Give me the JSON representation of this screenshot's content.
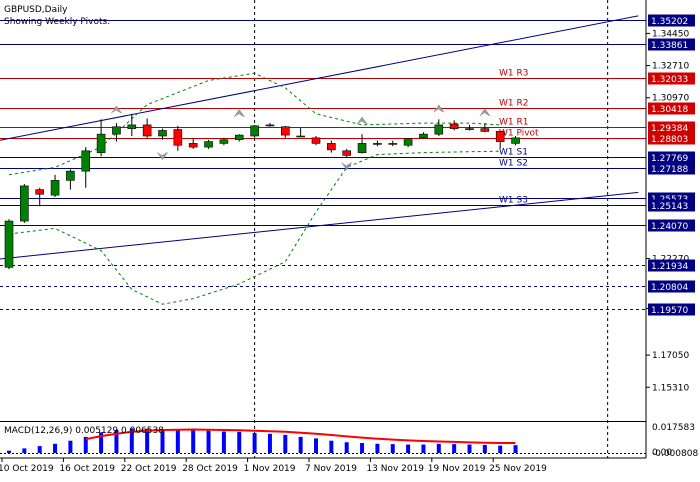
{
  "header": {
    "symbol": "GBPUSD,Daily",
    "subtitle": "Showing Weekly Pivots."
  },
  "colors": {
    "background": "#ffffff",
    "bull_candle": "#008000",
    "bear_candle": "#ff0000",
    "pivot_blue": "#000080",
    "pivot_red": "#c00000",
    "channel_line": "#000080",
    "envelope": "#008000",
    "macd_hist": "#0000ff",
    "macd_signal": "#ff0000",
    "price_tag_blue": "#000080",
    "price_tag_red": "#d00000"
  },
  "price_axis": {
    "scale": [
      {
        "price": 1.3445,
        "label": "1.34450"
      },
      {
        "price": 1.3271,
        "label": "1.32710"
      },
      {
        "price": 1.3097,
        "label": "1.30970"
      },
      {
        "price": 1.2227,
        "label": "1.22270"
      },
      {
        "price": 1.1957,
        "label": "1.19570"
      },
      {
        "price": 1.1705,
        "label": "1.17050"
      },
      {
        "price": 1.1531,
        "label": "1.15310"
      }
    ],
    "tags": [
      {
        "price": 1.35202,
        "label": "1.35202",
        "color": "blue"
      },
      {
        "price": 1.33861,
        "label": "1.33861",
        "color": "blue"
      },
      {
        "price": 1.32033,
        "label": "1.32033",
        "color": "red"
      },
      {
        "price": 1.30418,
        "label": "1.30418",
        "color": "red"
      },
      {
        "price": 1.29384,
        "label": "1.29384",
        "color": "red"
      },
      {
        "price": 1.28803,
        "label": "1.28803",
        "color": "red"
      },
      {
        "price": 1.27769,
        "label": "1.27769",
        "color": "blue"
      },
      {
        "price": 1.27188,
        "label": "1.27188",
        "color": "blue"
      },
      {
        "price": 1.25573,
        "label": "1.25573",
        "color": "blue"
      },
      {
        "price": 1.25143,
        "label": "1.25143",
        "color": "blue"
      },
      {
        "price": 1.2407,
        "label": "1.24070",
        "color": "blue"
      },
      {
        "price": 1.21934,
        "label": "1.21934",
        "color": "blue"
      },
      {
        "price": 1.20804,
        "label": "1.20804",
        "color": "blue"
      },
      {
        "price": 1.1957,
        "label": "1.19570",
        "color": "blue"
      }
    ]
  },
  "pivots": [
    {
      "price": 1.35202,
      "label": "",
      "style": "solid",
      "color": "blue"
    },
    {
      "price": 1.33861,
      "label": "",
      "style": "solid",
      "color": "blue"
    },
    {
      "price": 1.32033,
      "label": "W1 R3",
      "style": "solid",
      "color": "red"
    },
    {
      "price": 1.30418,
      "label": "W1 R2",
      "style": "solid",
      "color": "red"
    },
    {
      "price": 1.29384,
      "label": "W1 R1",
      "style": "solid",
      "color": "red"
    },
    {
      "price": 1.28803,
      "label": "W1 Pivot",
      "style": "solid",
      "color": "red"
    },
    {
      "price": 1.27769,
      "label": "W1 S1",
      "style": "solid",
      "color": "blue"
    },
    {
      "price": 1.27188,
      "label": "W1 S2",
      "style": "solid",
      "color": "blue"
    },
    {
      "price": 1.25573,
      "label": "",
      "style": "solid",
      "color": "blue"
    },
    {
      "price": 1.25143,
      "label": "W1 S3",
      "style": "solid",
      "color": "blue"
    },
    {
      "price": 1.2407,
      "label": "",
      "style": "solid",
      "color": "blue"
    },
    {
      "price": 1.21934,
      "label": "",
      "style": "dashed",
      "color": "blue"
    },
    {
      "price": 1.20804,
      "label": "",
      "style": "dashed",
      "color": "blue"
    },
    {
      "price": 1.1957,
      "label": "",
      "style": "dashed",
      "color": "blue"
    }
  ],
  "channel_lines": [
    {
      "from": [
        0,
        1.2867
      ],
      "to": [
        41,
        1.354
      ]
    },
    {
      "from": [
        0,
        1.2225
      ],
      "to": [
        41,
        1.2585
      ]
    }
  ],
  "candles": [
    {
      "o": 1.218,
      "h": 1.244,
      "l": 1.217,
      "c": 1.243
    },
    {
      "o": 1.243,
      "h": 1.263,
      "l": 1.242,
      "c": 1.262
    },
    {
      "o": 1.26,
      "h": 1.261,
      "l": 1.251,
      "c": 1.2575
    },
    {
      "o": 1.257,
      "h": 1.268,
      "l": 1.256,
      "c": 1.265
    },
    {
      "o": 1.265,
      "h": 1.271,
      "l": 1.26,
      "c": 1.27
    },
    {
      "o": 1.27,
      "h": 1.283,
      "l": 1.261,
      "c": 1.281
    },
    {
      "o": 1.28,
      "h": 1.298,
      "l": 1.278,
      "c": 1.29
    },
    {
      "o": 1.29,
      "h": 1.296,
      "l": 1.286,
      "c": 1.294
    },
    {
      "o": 1.293,
      "h": 1.301,
      "l": 1.289,
      "c": 1.295
    },
    {
      "o": 1.295,
      "h": 1.2985,
      "l": 1.288,
      "c": 1.289
    },
    {
      "o": 1.289,
      "h": 1.293,
      "l": 1.287,
      "c": 1.292
    },
    {
      "o": 1.2925,
      "h": 1.2945,
      "l": 1.281,
      "c": 1.284
    },
    {
      "o": 1.285,
      "h": 1.288,
      "l": 1.282,
      "c": 1.283
    },
    {
      "o": 1.283,
      "h": 1.287,
      "l": 1.282,
      "c": 1.286
    },
    {
      "o": 1.285,
      "h": 1.288,
      "l": 1.284,
      "c": 1.287
    },
    {
      "o": 1.287,
      "h": 1.29,
      "l": 1.286,
      "c": 1.2895
    },
    {
      "o": 1.289,
      "h": 1.295,
      "l": 1.288,
      "c": 1.2945
    },
    {
      "o": 1.295,
      "h": 1.296,
      "l": 1.294,
      "c": 1.2948
    },
    {
      "o": 1.294,
      "h": 1.2945,
      "l": 1.288,
      "c": 1.2895
    },
    {
      "o": 1.289,
      "h": 1.2935,
      "l": 1.2885,
      "c": 1.289
    },
    {
      "o": 1.288,
      "h": 1.289,
      "l": 1.284,
      "c": 1.285
    },
    {
      "o": 1.285,
      "h": 1.2865,
      "l": 1.28,
      "c": 1.2815
    },
    {
      "o": 1.281,
      "h": 1.282,
      "l": 1.2775,
      "c": 1.2785
    },
    {
      "o": 1.28,
      "h": 1.29,
      "l": 1.2795,
      "c": 1.285
    },
    {
      "o": 1.2845,
      "h": 1.2865,
      "l": 1.2835,
      "c": 1.285
    },
    {
      "o": 1.285,
      "h": 1.2865,
      "l": 1.2835,
      "c": 1.2845
    },
    {
      "o": 1.284,
      "h": 1.288,
      "l": 1.283,
      "c": 1.2875
    },
    {
      "o": 1.288,
      "h": 1.291,
      "l": 1.2875,
      "c": 1.29
    },
    {
      "o": 1.29,
      "h": 1.298,
      "l": 1.289,
      "c": 1.295
    },
    {
      "o": 1.2955,
      "h": 1.2975,
      "l": 1.292,
      "c": 1.293
    },
    {
      "o": 1.293,
      "h": 1.295,
      "l": 1.292,
      "c": 1.2928
    },
    {
      "o": 1.293,
      "h": 1.296,
      "l": 1.291,
      "c": 1.2915
    },
    {
      "o": 1.2915,
      "h": 1.292,
      "l": 1.2825,
      "c": 1.286
    },
    {
      "o": 1.285,
      "h": 1.289,
      "l": 1.284,
      "c": 1.288
    }
  ],
  "fractals": [
    {
      "bar": 7,
      "type": "up",
      "price": 1.303
    },
    {
      "bar": 10,
      "type": "down",
      "price": 1.2785
    },
    {
      "bar": 15,
      "type": "up",
      "price": 1.301
    },
    {
      "bar": 23,
      "type": "up",
      "price": 1.297
    },
    {
      "bar": 22,
      "type": "down",
      "price": 1.273
    },
    {
      "bar": 28,
      "type": "up",
      "price": 1.3035
    },
    {
      "bar": 31,
      "type": "up",
      "price": 1.3015
    }
  ],
  "envelope_upper": [
    [
      0,
      1.268
    ],
    [
      3,
      1.272
    ],
    [
      6,
      1.283
    ],
    [
      9,
      1.306
    ],
    [
      13,
      1.319
    ],
    [
      16,
      1.323
    ],
    [
      18,
      1.315
    ],
    [
      20,
      1.301
    ],
    [
      23,
      1.295
    ],
    [
      27,
      1.296
    ],
    [
      30,
      1.296
    ],
    [
      32,
      1.295
    ]
  ],
  "envelope_lower": [
    [
      0,
      1.236
    ],
    [
      3,
      1.239
    ],
    [
      6,
      1.227
    ],
    [
      8,
      1.206
    ],
    [
      10,
      1.198
    ],
    [
      12,
      1.201
    ],
    [
      15,
      1.209
    ],
    [
      18,
      1.221
    ],
    [
      20,
      1.248
    ],
    [
      22,
      1.272
    ],
    [
      24,
      1.279
    ],
    [
      27,
      1.28
    ],
    [
      30,
      1.2805
    ],
    [
      32,
      1.2808
    ]
  ],
  "time_axis": {
    "labels": [
      {
        "bar": 0,
        "label": "10 Oct 2019"
      },
      {
        "bar": 4,
        "label": "16 Oct 2019"
      },
      {
        "bar": 8,
        "label": "22 Oct 2019"
      },
      {
        "bar": 12,
        "label": "28 Oct 2019"
      },
      {
        "bar": 16,
        "label": "1 Nov 2019"
      },
      {
        "bar": 20,
        "label": "7 Nov 2019"
      },
      {
        "bar": 24,
        "label": "13 Nov 2019"
      },
      {
        "bar": 28,
        "label": "19 Nov 2019"
      },
      {
        "bar": 32,
        "label": "25 Nov 2019"
      }
    ]
  },
  "vertical_markers": [
    16,
    39
  ],
  "macd": {
    "label": "MACD(12,26,9) 0.005129 0.006538",
    "scale_top": "0.017583",
    "scale_zero": "0.00",
    "scale_bottom": "-0.000808",
    "histogram": [
      0.0015,
      0.003,
      0.0045,
      0.006,
      0.008,
      0.0105,
      0.0135,
      0.015,
      0.016,
      0.0158,
      0.0155,
      0.015,
      0.0148,
      0.0145,
      0.014,
      0.0138,
      0.013,
      0.0125,
      0.0118,
      0.0105,
      0.0095,
      0.008,
      0.007,
      0.0065,
      0.006,
      0.0058,
      0.0055,
      0.0055,
      0.006,
      0.0058,
      0.0055,
      0.0053,
      0.0048,
      0.0051
    ],
    "signal": [
      null,
      null,
      null,
      null,
      null,
      0.009,
      0.011,
      0.0125,
      0.0138,
      0.0145,
      0.015,
      0.0152,
      0.0153,
      0.0152,
      0.015,
      0.0148,
      0.0145,
      0.0142,
      0.0138,
      0.0132,
      0.0125,
      0.0117,
      0.0108,
      0.01,
      0.0093,
      0.0087,
      0.0082,
      0.0078,
      0.0075,
      0.0072,
      0.0069,
      0.0067,
      0.0065,
      0.0065
    ]
  }
}
